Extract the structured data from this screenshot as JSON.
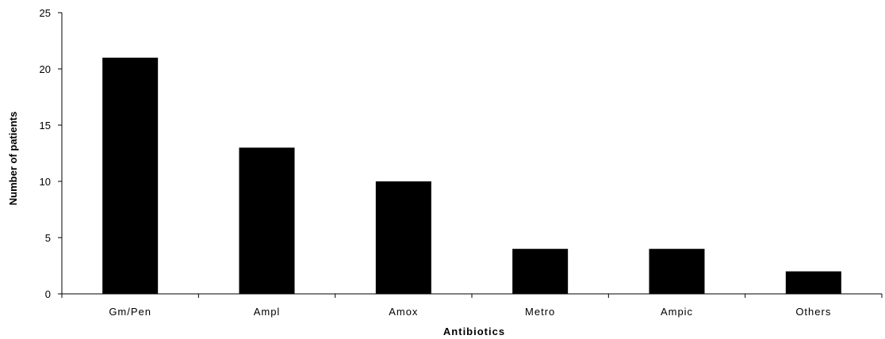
{
  "chart_data": {
    "type": "bar",
    "categories": [
      "Gm/Pen",
      "Ampl",
      "Amox",
      "Metro",
      "Ampic",
      "Others"
    ],
    "values": [
      21,
      13,
      10,
      4,
      4,
      2
    ],
    "xlabel": "Antibiotics",
    "ylabel": "Number of patients",
    "ylim": [
      0,
      25
    ],
    "yticks": [
      0,
      5,
      10,
      15,
      20,
      25
    ],
    "bar_color": "#000000",
    "grid": false,
    "legend": false
  }
}
